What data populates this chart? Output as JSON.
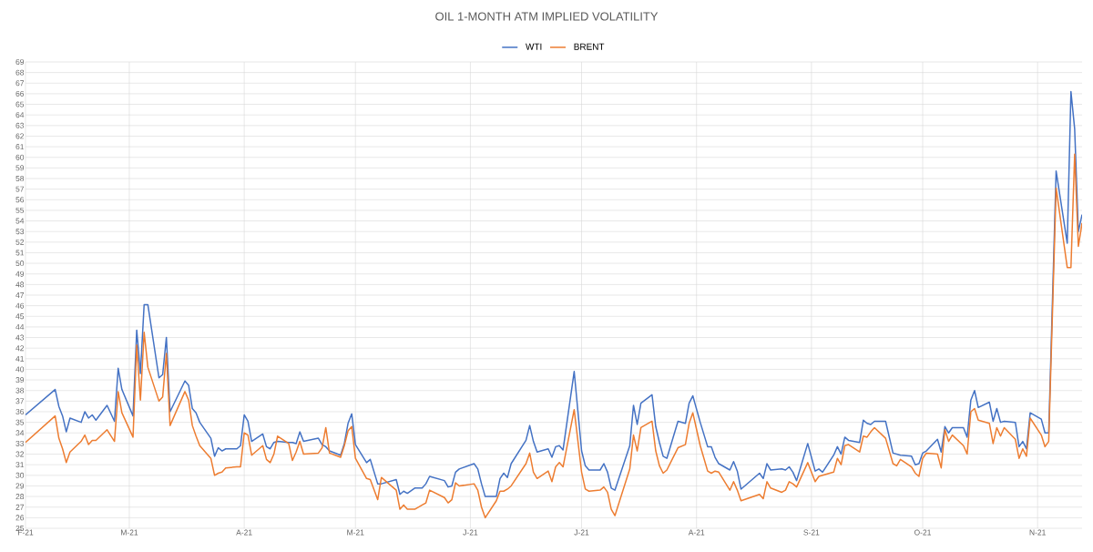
{
  "chart_data": {
    "type": "line",
    "title": "OIL 1-MONTH ATM IMPLIED VOLATILITY",
    "x": [
      "2021-02-01",
      "2021-02-09",
      "2021-02-10",
      "2021-02-11",
      "2021-02-12",
      "2021-02-13",
      "2021-02-16",
      "2021-02-17",
      "2021-02-18",
      "2021-02-19",
      "2021-02-20",
      "2021-02-23",
      "2021-02-25",
      "2021-02-26",
      "2021-02-27",
      "2021-03-02",
      "2021-03-03",
      "2021-03-04",
      "2021-03-05",
      "2021-03-06",
      "2021-03-09",
      "2021-03-10",
      "2021-03-11",
      "2021-03-12",
      "2021-03-16",
      "2021-03-17",
      "2021-03-18",
      "2021-03-19",
      "2021-03-20",
      "2021-03-23",
      "2021-03-24",
      "2021-03-25",
      "2021-03-26",
      "2021-03-27",
      "2021-03-30",
      "2021-03-31",
      "2021-04-01",
      "2021-04-02",
      "2021-04-03",
      "2021-04-06",
      "2021-04-07",
      "2021-04-08",
      "2021-04-09",
      "2021-04-10",
      "2021-04-13",
      "2021-04-14",
      "2021-04-15",
      "2021-04-16",
      "2021-04-17",
      "2021-04-21",
      "2021-04-22",
      "2021-04-23",
      "2021-04-24",
      "2021-04-27",
      "2021-04-28",
      "2021-04-29",
      "2021-04-30",
      "2021-05-01",
      "2021-05-04",
      "2021-05-05",
      "2021-05-07",
      "2021-05-08",
      "2021-05-12",
      "2021-05-13",
      "2021-05-14",
      "2021-05-15",
      "2021-05-17",
      "2021-05-19",
      "2021-05-20",
      "2021-05-21",
      "2021-05-25",
      "2021-05-26",
      "2021-05-27",
      "2021-05-28",
      "2021-05-29",
      "2021-06-02",
      "2021-06-03",
      "2021-06-04",
      "2021-06-05",
      "2021-06-08",
      "2021-06-09",
      "2021-06-10",
      "2021-06-11",
      "2021-06-12",
      "2021-06-16",
      "2021-06-17",
      "2021-06-18",
      "2021-06-19",
      "2021-06-22",
      "2021-06-23",
      "2021-06-24",
      "2021-06-25",
      "2021-06-26",
      "2021-06-29",
      "2021-07-01",
      "2021-07-02",
      "2021-07-03",
      "2021-07-06",
      "2021-07-07",
      "2021-07-08",
      "2021-07-09",
      "2021-07-10",
      "2021-07-14",
      "2021-07-15",
      "2021-07-16",
      "2021-07-17",
      "2021-07-20",
      "2021-07-21",
      "2021-07-22",
      "2021-07-23",
      "2021-07-24",
      "2021-07-27",
      "2021-07-29",
      "2021-07-30",
      "2021-07-31",
      "2021-08-02",
      "2021-08-04",
      "2021-08-05",
      "2021-08-06",
      "2021-08-07",
      "2021-08-10",
      "2021-08-11",
      "2021-08-12",
      "2021-08-13",
      "2021-08-18",
      "2021-08-19",
      "2021-08-20",
      "2021-08-21",
      "2021-08-24",
      "2021-08-25",
      "2021-08-26",
      "2021-08-27",
      "2021-08-28",
      "2021-08-31",
      "2021-09-02",
      "2021-09-03",
      "2021-09-04",
      "2021-09-07",
      "2021-09-08",
      "2021-09-09",
      "2021-09-10",
      "2021-09-11",
      "2021-09-14",
      "2021-09-15",
      "2021-09-16",
      "2021-09-17",
      "2021-09-18",
      "2021-09-21",
      "2021-09-23",
      "2021-09-24",
      "2021-09-25",
      "2021-09-28",
      "2021-09-29",
      "2021-09-30",
      "2021-10-01",
      "2021-10-02",
      "2021-10-05",
      "2021-10-06",
      "2021-10-07",
      "2021-10-08",
      "2021-10-09",
      "2021-10-12",
      "2021-10-13",
      "2021-10-14",
      "2021-10-15",
      "2021-10-16",
      "2021-10-19",
      "2021-10-20",
      "2021-10-21",
      "2021-10-22",
      "2021-10-23",
      "2021-10-26",
      "2021-10-27",
      "2021-10-28",
      "2021-10-29",
      "2021-10-30",
      "2021-11-02",
      "2021-11-03",
      "2021-11-04",
      "2021-11-06",
      "2021-11-09",
      "2021-11-10",
      "2021-11-11",
      "2021-11-12",
      "2021-11-13"
    ],
    "series": [
      {
        "name": "WTI",
        "color": "#4472c4",
        "values": [
          35.7,
          38.1,
          36.5,
          35.6,
          34.1,
          35.4,
          35.0,
          36.0,
          35.4,
          35.7,
          35.2,
          36.6,
          35.1,
          40.1,
          38.1,
          35.6,
          43.7,
          39.6,
          46.1,
          46.1,
          39.2,
          39.5,
          43.0,
          36.0,
          38.9,
          38.5,
          36.3,
          35.9,
          35.0,
          33.5,
          31.8,
          32.6,
          32.3,
          32.5,
          32.5,
          32.8,
          35.7,
          35.1,
          33.2,
          33.9,
          32.7,
          32.5,
          33.1,
          33.2,
          33.1,
          33.1,
          33.0,
          34.1,
          33.2,
          33.5,
          32.9,
          32.7,
          32.3,
          31.9,
          33.0,
          34.9,
          35.8,
          32.9,
          31.2,
          31.5,
          29.2,
          29.2,
          29.6,
          28.2,
          28.5,
          28.3,
          28.8,
          28.8,
          29.2,
          29.9,
          29.5,
          28.9,
          29.0,
          30.3,
          30.6,
          31.1,
          30.6,
          29.2,
          28.0,
          28.0,
          29.7,
          30.2,
          29.8,
          31.1,
          33.3,
          34.7,
          33.2,
          32.2,
          32.5,
          31.7,
          32.7,
          32.8,
          32.4,
          39.8,
          32.3,
          30.9,
          30.5,
          30.5,
          31.1,
          30.3,
          28.8,
          28.6,
          32.8,
          36.6,
          34.8,
          36.8,
          37.6,
          34.6,
          33.1,
          31.8,
          31.6,
          35.1,
          34.9,
          36.8,
          37.5,
          35.0,
          32.7,
          32.7,
          31.7,
          31.1,
          30.5,
          31.3,
          30.4,
          28.7,
          30.2,
          29.7,
          31.1,
          30.5,
          30.6,
          30.5,
          30.8,
          30.3,
          29.5,
          33.0,
          30.4,
          30.6,
          30.3,
          31.9,
          32.7,
          32.0,
          33.6,
          33.3,
          33.1,
          35.2,
          34.9,
          34.8,
          35.1,
          35.1,
          32.1,
          32.0,
          31.9,
          31.8,
          31.0,
          31.1,
          32.1,
          32.3,
          33.4,
          32.2,
          34.6,
          34.0,
          34.5,
          34.5,
          33.6,
          37.1,
          38.0,
          36.4,
          36.9,
          35.1,
          36.3,
          35.0,
          35.1,
          35.0,
          32.7,
          33.2,
          32.5,
          35.9,
          35.3,
          34.0,
          34.0,
          58.7,
          51.9,
          66.2,
          62.7,
          53.0,
          54.6
        ]
      },
      {
        "name": "BRENT",
        "color": "#ed7d31",
        "values": [
          33.1,
          35.6,
          33.5,
          32.5,
          31.2,
          32.2,
          33.2,
          33.8,
          32.9,
          33.3,
          33.3,
          34.3,
          33.2,
          37.9,
          35.9,
          33.6,
          42.3,
          37.1,
          43.5,
          40.2,
          37.0,
          37.4,
          41.5,
          34.7,
          37.9,
          37.1,
          34.7,
          33.7,
          32.8,
          31.6,
          30.0,
          30.2,
          30.3,
          30.7,
          30.8,
          30.8,
          34.0,
          33.8,
          31.9,
          32.8,
          31.5,
          31.2,
          32.0,
          33.7,
          33.0,
          31.4,
          32.2,
          33.2,
          32.0,
          32.1,
          32.6,
          34.5,
          32.1,
          31.7,
          32.8,
          34.2,
          34.6,
          31.6,
          29.7,
          29.6,
          27.7,
          29.8,
          28.6,
          26.8,
          27.2,
          26.8,
          26.8,
          27.2,
          27.4,
          28.6,
          27.9,
          27.4,
          27.7,
          29.3,
          29.0,
          29.2,
          28.6,
          27.0,
          26.0,
          27.6,
          28.5,
          28.5,
          28.7,
          29.0,
          31.1,
          32.1,
          30.3,
          29.7,
          30.4,
          29.4,
          30.8,
          31.2,
          30.8,
          36.2,
          30.3,
          28.7,
          28.5,
          28.6,
          28.9,
          28.4,
          26.8,
          26.2,
          30.6,
          33.8,
          32.3,
          34.5,
          35.1,
          32.3,
          30.9,
          30.2,
          30.5,
          32.6,
          32.9,
          34.9,
          35.9,
          32.8,
          30.4,
          30.2,
          30.4,
          30.3,
          28.6,
          29.4,
          28.6,
          27.6,
          28.2,
          27.8,
          29.4,
          28.8,
          28.4,
          28.6,
          29.4,
          29.2,
          28.9,
          31.2,
          29.4,
          29.9,
          30.0,
          30.3,
          31.6,
          31.0,
          32.8,
          32.9,
          32.2,
          33.7,
          33.6,
          34.1,
          34.5,
          33.5,
          31.1,
          30.9,
          31.5,
          30.8,
          30.2,
          29.9,
          31.6,
          32.1,
          32.0,
          30.7,
          34.3,
          33.2,
          33.8,
          32.8,
          32.0,
          36.0,
          36.3,
          35.2,
          34.9,
          33.0,
          34.5,
          33.7,
          34.5,
          33.4,
          31.6,
          32.5,
          31.8,
          35.4,
          33.8,
          32.7,
          33.2,
          57.1,
          49.6,
          49.6,
          60.3,
          51.6,
          53.8
        ]
      }
    ],
    "xlim": [
      "2021-02-01",
      "2021-11-13"
    ],
    "xticks": [
      {
        "value": "2021-02-01",
        "label": "F-21"
      },
      {
        "value": "2021-03-01",
        "label": "M-21"
      },
      {
        "value": "2021-04-01",
        "label": "A-21"
      },
      {
        "value": "2021-05-01",
        "label": "M-21"
      },
      {
        "value": "2021-06-01",
        "label": "J-21"
      },
      {
        "value": "2021-07-01",
        "label": "J-21"
      },
      {
        "value": "2021-08-01",
        "label": "A-21"
      },
      {
        "value": "2021-09-01",
        "label": "S-21"
      },
      {
        "value": "2021-10-01",
        "label": "O-21"
      },
      {
        "value": "2021-11-01",
        "label": "N-21"
      }
    ],
    "ylim": [
      25,
      69
    ],
    "yticks": [
      25,
      26,
      27,
      28,
      29,
      30,
      31,
      32,
      33,
      34,
      35,
      36,
      37,
      38,
      39,
      40,
      41,
      42,
      43,
      44,
      45,
      46,
      47,
      48,
      49,
      50,
      51,
      52,
      53,
      54,
      55,
      56,
      57,
      58,
      59,
      60,
      61,
      62,
      63,
      64,
      65,
      66,
      67,
      68,
      69
    ],
    "grid": true,
    "legend": "top"
  }
}
